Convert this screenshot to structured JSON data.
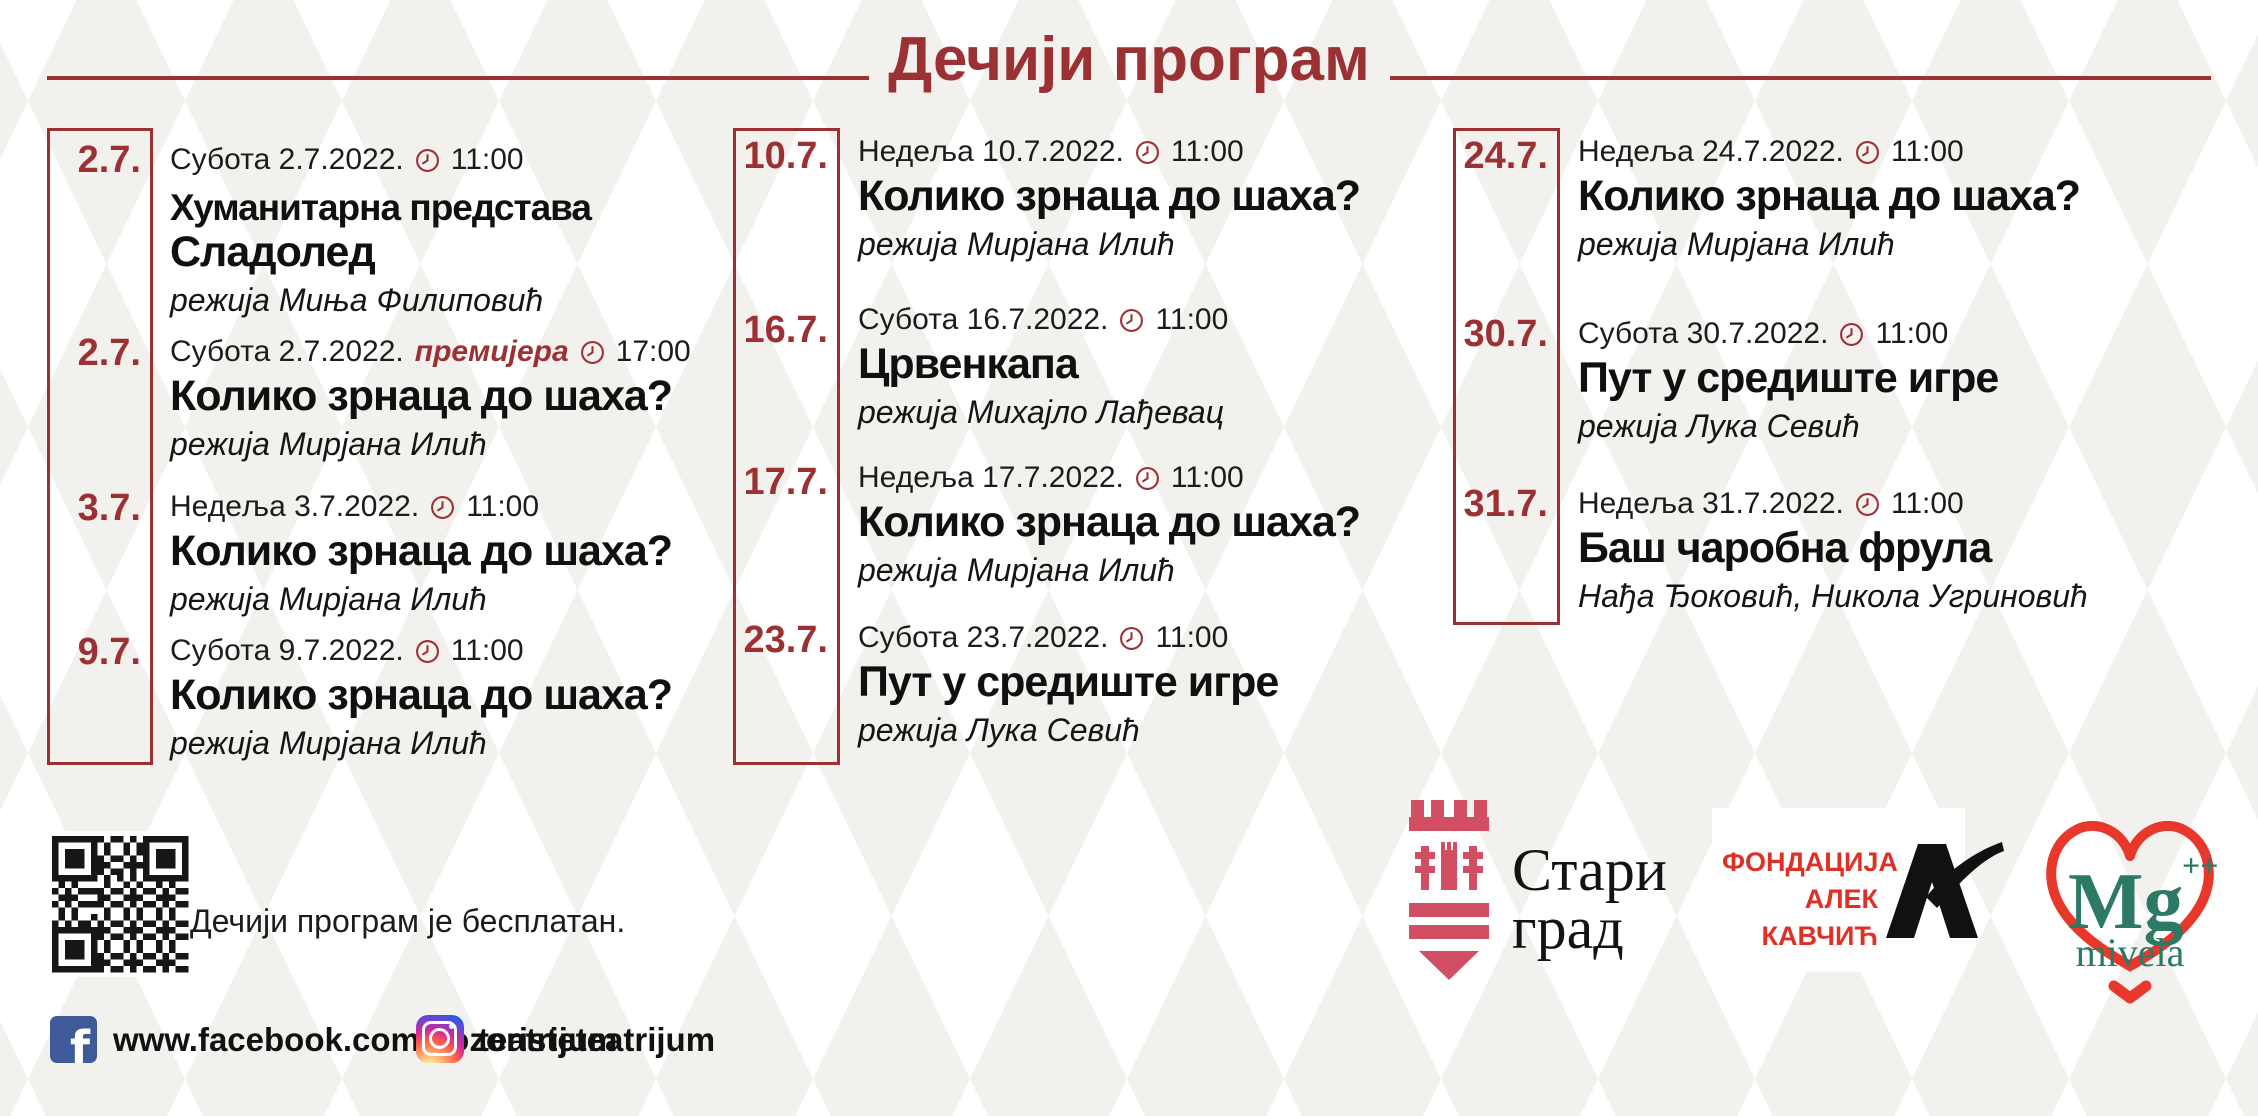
{
  "header": {
    "title": "Дечији програм",
    "accent_color": "#9c3134"
  },
  "columns": [
    {
      "events": [
        {
          "date": "2.7.",
          "day_line": "Субота 2.7.2022.",
          "time": "11:00",
          "title_lines": [
            "Хуманитарна представа",
            "Сладолед"
          ],
          "subtitle": "режија Миња Филиповић"
        },
        {
          "date": "2.7.",
          "day_line": "Субота 2.7.2022.",
          "premiere": "премијера",
          "time": "17:00",
          "title_lines": [
            "Колико зрнаца до шаха?"
          ],
          "subtitle": "режија Мирјана Илић"
        },
        {
          "date": "3.7.",
          "day_line": "Недеља 3.7.2022.",
          "time": "11:00",
          "title_lines": [
            "Колико зрнаца до шаха?"
          ],
          "subtitle": "режија Мирјана Илић"
        },
        {
          "date": "9.7.",
          "day_line": "Субота 9.7.2022.",
          "time": "11:00",
          "title_lines": [
            "Колико зрнаца до шаха?"
          ],
          "subtitle": "режија Мирјана Илић"
        }
      ]
    },
    {
      "events": [
        {
          "date": "10.7.",
          "day_line": "Недеља 10.7.2022.",
          "time": "11:00",
          "title_lines": [
            "Колико зрнаца до шаха?"
          ],
          "subtitle": "режија Мирјана Илић"
        },
        {
          "date": "16.7.",
          "day_line": "Субота 16.7.2022.",
          "time": "11:00",
          "title_lines": [
            "Црвенкапа"
          ],
          "subtitle": "режија Михајло Лађевац"
        },
        {
          "date": "17.7.",
          "day_line": "Недеља 17.7.2022.",
          "time": "11:00",
          "title_lines": [
            "Колико зрнаца до шаха?"
          ],
          "subtitle": "режија Мирјана Илић"
        },
        {
          "date": "23.7.",
          "day_line": "Субота 23.7.2022.",
          "time": "11:00",
          "title_lines": [
            "Пут у средиште игре"
          ],
          "subtitle": "режија Лука Севић"
        }
      ]
    },
    {
      "events": [
        {
          "date": "24.7.",
          "day_line": "Недеља 24.7.2022.",
          "time": "11:00",
          "title_lines": [
            "Колико зрнаца до шаха?"
          ],
          "subtitle": "режија Мирјана Илић"
        },
        {
          "date": "30.7.",
          "day_line": "Субота 30.7.2022.",
          "time": "11:00",
          "title_lines": [
            "Пут у средиште игре"
          ],
          "subtitle": "режија Лука Севић"
        },
        {
          "date": "31.7.",
          "day_line": "Недеља 31.7.2022.",
          "time": "11:00",
          "title_lines": [
            "Баш чаробна фрула"
          ],
          "subtitle": "Нађа Ђоковић, Никола Угриновић"
        }
      ]
    }
  ],
  "footer": {
    "free_note": "Дечији програм је бесплатан.",
    "facebook_url": "www.facebook.com/pozoristeteatrijum",
    "instagram_handle": "teatrijum"
  },
  "partners": {
    "stari_grad": {
      "line1": "Стари",
      "line2": "град",
      "emblem_color": "#d24f63"
    },
    "fondacija": {
      "line1": "ФОНДАЦИЈА",
      "line2": "АЛЕК",
      "line3": "КАВЧИЋ",
      "color": "#e03026"
    },
    "mivela": {
      "mg": "Mg",
      "plusses": "++",
      "name": "mivela",
      "green": "#2c7a66",
      "red": "#e8372b"
    }
  },
  "icons": {
    "clock": "clock-icon",
    "qr": "qr-code",
    "facebook": "facebook-icon",
    "instagram": "instagram-icon"
  }
}
